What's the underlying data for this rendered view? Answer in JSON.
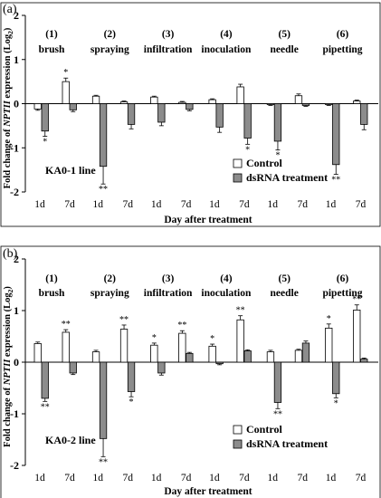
{
  "chart_data": [
    {
      "type": "bar",
      "panel_label": "(a)",
      "ylabel_prefix": "Fold change of ",
      "ylabel_gene": "NPTII",
      "ylabel_suffix": " expression (Log",
      "ylabel_sub": "2",
      "ylabel_close": ")",
      "xlabel": "Day after treatment",
      "ylim": [
        -2,
        2
      ],
      "yticks": [
        "2",
        "1",
        "0",
        "-1",
        "-2"
      ],
      "line_label": "KA0-1 line",
      "legend": [
        "Control",
        "dsRNA treatment"
      ],
      "groups": [
        {
          "num": "(1)",
          "name": "brush"
        },
        {
          "num": "(2)",
          "name": "spraying"
        },
        {
          "num": "(3)",
          "name": "infiltration"
        },
        {
          "num": "(4)",
          "name": "inoculation"
        },
        {
          "num": "(5)",
          "name": "needle"
        },
        {
          "num": "(6)",
          "name": "pipetting"
        }
      ],
      "days": [
        "1d",
        "7d"
      ],
      "series": [
        {
          "name": "Control",
          "values": [
            -0.12,
            0.5,
            0.17,
            0.04,
            0.15,
            0.03,
            0.09,
            0.38,
            -0.02,
            0.18,
            -0.02,
            0.06
          ],
          "errors": [
            0.03,
            0.08,
            0.02,
            0.02,
            0.02,
            0.02,
            0.02,
            0.06,
            0.02,
            0.04,
            0.02,
            0.02
          ],
          "marks": [
            "",
            "*",
            "",
            "",
            "",
            "",
            "",
            "",
            "",
            "",
            "",
            ""
          ]
        },
        {
          "name": "dsRNA treatment",
          "values": [
            -0.62,
            -0.14,
            -1.42,
            -0.47,
            -0.42,
            -0.13,
            -0.53,
            -0.78,
            -0.85,
            -0.04,
            -1.38,
            -0.47
          ],
          "errors": [
            0.12,
            0.04,
            0.4,
            0.1,
            0.08,
            0.03,
            0.12,
            0.14,
            0.2,
            0.02,
            0.22,
            0.12
          ],
          "marks": [
            "*",
            "",
            "**",
            "",
            "",
            "",
            "",
            "*",
            "*",
            "",
            "**",
            ""
          ]
        }
      ]
    },
    {
      "type": "bar",
      "panel_label": "(b)",
      "ylabel_prefix": "Fold change of ",
      "ylabel_gene": "NPTII",
      "ylabel_suffix": " expression (Log",
      "ylabel_sub": "2",
      "ylabel_close": ")",
      "xlabel": "Day after treatment",
      "ylim": [
        -2,
        2
      ],
      "yticks": [
        "2",
        "1",
        "0",
        "-1",
        "-2"
      ],
      "line_label": "KA0-2 line",
      "legend": [
        "Control",
        "dsRNA treatment"
      ],
      "groups": [
        {
          "num": "(1)",
          "name": "brush"
        },
        {
          "num": "(2)",
          "name": "spraying"
        },
        {
          "num": "(3)",
          "name": "infiltration"
        },
        {
          "num": "(4)",
          "name": "inoculation"
        },
        {
          "num": "(5)",
          "name": "needle"
        },
        {
          "num": "(6)",
          "name": "pipetting"
        }
      ],
      "days": [
        "1d",
        "7d"
      ],
      "series": [
        {
          "name": "Control",
          "values": [
            0.36,
            0.58,
            0.2,
            0.64,
            0.33,
            0.56,
            0.31,
            0.82,
            0.2,
            0.23,
            0.66,
            1.01
          ],
          "errors": [
            0.03,
            0.05,
            0.03,
            0.08,
            0.04,
            0.05,
            0.04,
            0.08,
            0.03,
            0.02,
            0.08,
            0.1
          ],
          "marks": [
            "",
            "**",
            "",
            "**",
            "*",
            "**",
            "*",
            "**",
            "",
            "",
            "*",
            "**"
          ]
        },
        {
          "name": "dsRNA treatment",
          "values": [
            -0.7,
            -0.21,
            -1.48,
            -0.57,
            -0.21,
            0.17,
            -0.03,
            0.22,
            -0.78,
            0.37,
            -0.61,
            0.06
          ],
          "errors": [
            0.06,
            0.03,
            0.35,
            0.1,
            0.04,
            0.02,
            0.02,
            0.02,
            0.12,
            0.04,
            0.08,
            0.02
          ],
          "marks": [
            "**",
            "",
            "**",
            "*",
            "",
            "",
            "",
            "",
            "**",
            "",
            "*",
            ""
          ]
        }
      ]
    }
  ]
}
